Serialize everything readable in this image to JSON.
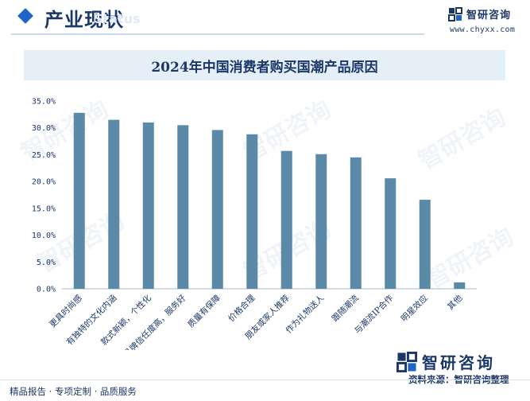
{
  "header": {
    "section_title": "产业现状",
    "section_watermark": "Status",
    "logo_name": "智研咨询",
    "logo_url": "www.chyxx.com"
  },
  "chart_data": {
    "type": "bar",
    "title": "2024年中国消费者购买国潮产品原因",
    "categories": [
      "更具时尚感",
      "有独特的文化内涵",
      "款式新颖，个性化",
      "品牌信任度高，服务好",
      "质量有保障",
      "价格合理",
      "朋友或家人推荐",
      "作为礼物送人",
      "跟随潮流",
      "与潮流IP合作",
      "明星效应",
      "其他"
    ],
    "values": [
      32.8,
      31.5,
      31.0,
      30.5,
      29.6,
      28.8,
      25.7,
      25.1,
      24.5,
      20.6,
      16.6,
      1.2
    ],
    "ylim": [
      0,
      35
    ],
    "yticks": [
      "0.0%",
      "5.0%",
      "10.0%",
      "15.0%",
      "20.0%",
      "25.0%",
      "30.0%",
      "35.0%"
    ],
    "xlabel": "",
    "ylabel": "",
    "bar_color": "#5b8aa8",
    "grid": false,
    "legend": "none"
  },
  "watermark_text": "智研咨询",
  "footer": {
    "left_text": "精品报告 · 专项定制 · 品质服务",
    "source_text": "资料来源：智研咨询整理",
    "logo_name": "智研咨询"
  },
  "colors": {
    "primary": "#1b3768",
    "accent": "#1f63c6",
    "banner": "#e5eff8",
    "bar": "#5b8aa8"
  }
}
